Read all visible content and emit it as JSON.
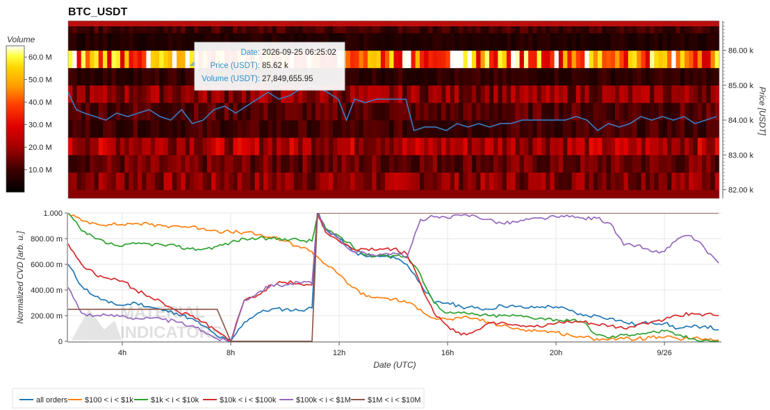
{
  "chart_data": [
    {
      "type": "heatmap",
      "title": "BTC_USDT",
      "ylabel": "Price [USDT]",
      "ylim": [
        81.75,
        86.85
      ],
      "yticks": [
        "82.00 k",
        "83.00 k",
        "84.00 k",
        "85.00 k",
        "86.00 k"
      ],
      "ytick_values": [
        82,
        83,
        84,
        85,
        86
      ],
      "colorbar": {
        "label": "Volume",
        "range": [
          0,
          65
        ],
        "ticks": [
          "10.0 M",
          "20.0 M",
          "30.0 M",
          "40.0 M",
          "50.0 M",
          "60.0 M"
        ],
        "tick_values": [
          10,
          20,
          30,
          40,
          50,
          60
        ]
      },
      "price_bands_k": [
        82.0,
        82.5,
        83.0,
        83.5,
        84.0,
        84.5,
        85.0,
        85.5,
        86.0,
        86.5
      ],
      "band_volume_m": [
        18,
        14,
        22,
        10,
        12,
        18,
        8,
        48,
        6,
        10
      ],
      "price_series": {
        "name": "",
        "color": "#3b7dc4",
        "x_hours": [
          2,
          2.3,
          2.6,
          3,
          3.4,
          3.8,
          4.2,
          4.6,
          5,
          5.4,
          5.8,
          6.2,
          6.6,
          7,
          7.4,
          7.8,
          8.2,
          8.6,
          9,
          9.4,
          9.8,
          10.2,
          10.6,
          11,
          11.3,
          11.6,
          12,
          12.3,
          12.6,
          13,
          13.4,
          13.8,
          14.2,
          14.5,
          14.8,
          15.2,
          15.6,
          16,
          16.4,
          16.8,
          17.2,
          17.6,
          18,
          18.4,
          18.8,
          19.2,
          19.6,
          20,
          20.4,
          20.8,
          21.2,
          21.6,
          22,
          22.4,
          22.8,
          23.2,
          23.6,
          24,
          24.4,
          24.8,
          25.2,
          25.6,
          26
        ],
        "y_k": [
          84.8,
          84.3,
          84.2,
          84.1,
          84.0,
          84.2,
          84.1,
          84.2,
          84.3,
          84.1,
          84.0,
          84.3,
          83.9,
          84.0,
          84.3,
          84.4,
          84.2,
          84.4,
          84.6,
          84.8,
          84.6,
          84.7,
          84.9,
          85.0,
          84.9,
          84.8,
          84.6,
          84.0,
          84.6,
          84.5,
          84.6,
          84.6,
          84.6,
          84.6,
          83.7,
          83.8,
          83.8,
          83.7,
          83.9,
          83.8,
          83.9,
          83.8,
          83.9,
          83.9,
          84.0,
          84.0,
          84.0,
          84.0,
          84.0,
          84.1,
          84.0,
          83.7,
          83.9,
          83.8,
          83.9,
          84.1,
          84.0,
          84.1,
          84.0,
          84.1,
          83.9,
          84.0,
          84.1
        ]
      },
      "tooltip": {
        "date_label": "Date:",
        "date_value": "2026-09-25 06:25:02",
        "price_label": "Price (USDT):",
        "price_value": "85.62 k",
        "volume_label": "Volume (USDT):",
        "volume_value": "27,849,655.95"
      }
    },
    {
      "type": "line",
      "xlabel": "Date (UTC)",
      "ylabel": "Normalized CVD [arb. u.]",
      "xlim_hours": [
        2,
        26.1
      ],
      "xticks": [
        "4h",
        "8h",
        "12h",
        "16h",
        "20h",
        "9/26"
      ],
      "xtick_values": [
        4,
        8,
        12,
        16,
        20,
        24
      ],
      "ylim": [
        0,
        1
      ],
      "yticks": [
        "0",
        "200.00 m",
        "400.00 m",
        "600.00 m",
        "800.00 m",
        "1.000"
      ],
      "ytick_values": [
        0,
        0.2,
        0.4,
        0.6,
        0.8,
        1.0
      ],
      "x": [
        2,
        2.5,
        3,
        3.5,
        4,
        4.5,
        5,
        5.5,
        6,
        6.5,
        7,
        7.5,
        8,
        8.5,
        9,
        9.5,
        10,
        10.5,
        11,
        11.2,
        11.5,
        12,
        12.5,
        13,
        13.5,
        14,
        14.5,
        15,
        15.5,
        16,
        16.5,
        17,
        17.5,
        18,
        18.5,
        19,
        19.5,
        20,
        20.5,
        21,
        21.5,
        22,
        22.5,
        23,
        23.5,
        24,
        24.5,
        25,
        25.5,
        26
      ],
      "series": [
        {
          "name": "all orders",
          "color": "#1f77b4",
          "values": [
            0.6,
            0.43,
            0.35,
            0.3,
            0.28,
            0.3,
            0.27,
            0.24,
            0.22,
            0.18,
            0.12,
            0.04,
            0.0,
            0.15,
            0.22,
            0.25,
            0.25,
            0.24,
            0.26,
            1.0,
            0.88,
            0.8,
            0.7,
            0.66,
            0.66,
            0.66,
            0.6,
            0.45,
            0.3,
            0.3,
            0.27,
            0.26,
            0.25,
            0.28,
            0.27,
            0.26,
            0.27,
            0.27,
            0.24,
            0.2,
            0.2,
            0.18,
            0.15,
            0.13,
            0.15,
            0.14,
            0.1,
            0.11,
            0.12,
            0.09
          ]
        },
        {
          "name": "$100 < i < $1k",
          "color": "#ff7f0e",
          "values": [
            1.0,
            0.94,
            0.92,
            0.91,
            0.91,
            0.92,
            0.91,
            0.9,
            0.9,
            0.89,
            0.88,
            0.86,
            0.85,
            0.85,
            0.83,
            0.81,
            0.78,
            0.74,
            0.7,
            0.66,
            0.6,
            0.52,
            0.42,
            0.35,
            0.34,
            0.33,
            0.3,
            0.25,
            0.18,
            0.17,
            0.18,
            0.18,
            0.15,
            0.12,
            0.1,
            0.09,
            0.08,
            0.07,
            0.05,
            0.03,
            0.02,
            0.02,
            0.02,
            0.02,
            0.03,
            0.03,
            0.02,
            0.02,
            0.02,
            0.01
          ]
        },
        {
          "name": "$1k < i < $10k",
          "color": "#2ca02c",
          "values": [
            1.0,
            0.86,
            0.8,
            0.76,
            0.74,
            0.76,
            0.76,
            0.75,
            0.74,
            0.72,
            0.72,
            0.74,
            0.77,
            0.8,
            0.8,
            0.8,
            0.8,
            0.79,
            0.78,
            0.98,
            0.88,
            0.82,
            0.74,
            0.67,
            0.67,
            0.67,
            0.66,
            0.52,
            0.3,
            0.22,
            0.22,
            0.21,
            0.2,
            0.2,
            0.2,
            0.19,
            0.18,
            0.17,
            0.16,
            0.15,
            0.05,
            0.03,
            0.05,
            0.06,
            0.07,
            0.08,
            0.05,
            0.02,
            0.01,
            0.0
          ]
        },
        {
          "name": "$10k < i < $100k",
          "color": "#d62728",
          "values": [
            0.76,
            0.6,
            0.52,
            0.49,
            0.47,
            0.4,
            0.35,
            0.3,
            0.24,
            0.2,
            0.15,
            0.08,
            0.0,
            0.32,
            0.36,
            0.44,
            0.46,
            0.45,
            0.44,
            1.0,
            0.85,
            0.78,
            0.72,
            0.72,
            0.72,
            0.72,
            0.68,
            0.45,
            0.22,
            0.12,
            0.05,
            0.08,
            0.14,
            0.15,
            0.13,
            0.12,
            0.11,
            0.14,
            0.15,
            0.15,
            0.13,
            0.12,
            0.1,
            0.13,
            0.15,
            0.17,
            0.2,
            0.22,
            0.21,
            0.2
          ]
        },
        {
          "name": "$100k < i < $1M",
          "color": "#9467bd",
          "values": [
            0.42,
            0.22,
            0.2,
            0.2,
            0.2,
            0.18,
            0.18,
            0.17,
            0.15,
            0.12,
            0.08,
            0.02,
            0.0,
            0.32,
            0.38,
            0.44,
            0.44,
            0.46,
            0.45,
            1.0,
            0.87,
            0.8,
            0.7,
            0.68,
            0.68,
            0.69,
            0.65,
            0.95,
            0.97,
            0.96,
            0.98,
            0.98,
            0.95,
            0.92,
            0.93,
            0.95,
            0.96,
            0.97,
            0.97,
            0.96,
            0.96,
            0.92,
            0.75,
            0.75,
            0.7,
            0.7,
            0.8,
            0.82,
            0.72,
            0.61
          ]
        },
        {
          "name": "$1M < i < $10M",
          "color": "#8c564b",
          "values": [
            0.25,
            0.25,
            0.25,
            0.25,
            0.25,
            0.25,
            0.25,
            0.25,
            0.25,
            0.25,
            0.25,
            0.25,
            0.0,
            0.0,
            0.0,
            0.0,
            0.0,
            0.0,
            0.0,
            1.0,
            1.0,
            1.0,
            1.0,
            1.0,
            1.0,
            1.0,
            1.0,
            1.0,
            1.0,
            1.0,
            1.0,
            1.0,
            1.0,
            1.0,
            1.0,
            1.0,
            1.0,
            1.0,
            1.0,
            1.0,
            1.0,
            1.0,
            1.0,
            1.0,
            1.0,
            1.0,
            1.0,
            1.0,
            1.0,
            1.0
          ]
        }
      ],
      "watermark": [
        "MATERIAL",
        "INDICATORS"
      ],
      "legend_position": "bottom"
    }
  ]
}
